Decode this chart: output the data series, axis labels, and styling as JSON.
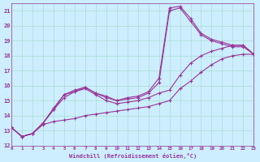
{
  "background_color": "#cceeff",
  "grid_color": "#aaddcc",
  "line_color": "#993399",
  "xlim": [
    0,
    23
  ],
  "ylim": [
    12,
    21.5
  ],
  "xlabel": "Windchill (Refroidissement éolien,°C)",
  "xlabel_color": "#993399",
  "tick_color": "#993399",
  "series": [
    {
      "x": [
        0,
        1,
        2,
        3,
        4,
        5,
        6,
        7,
        8,
        9,
        10,
        11,
        12,
        13,
        14,
        15,
        16,
        17,
        18,
        19,
        20,
        21,
        22,
        23
      ],
      "y": [
        13.2,
        12.6,
        12.8,
        13.4,
        13.6,
        13.7,
        13.8,
        14.0,
        14.1,
        14.2,
        14.3,
        14.4,
        14.5,
        14.6,
        14.8,
        15.0,
        15.8,
        16.3,
        16.9,
        17.4,
        17.8,
        18.0,
        18.1,
        18.1
      ]
    },
    {
      "x": [
        0,
        1,
        2,
        3,
        4,
        5,
        6,
        7,
        8,
        9,
        10,
        11,
        12,
        13,
        14,
        15,
        16,
        17,
        18,
        19,
        20,
        21,
        22,
        23
      ],
      "y": [
        13.2,
        12.6,
        12.8,
        13.5,
        14.4,
        15.4,
        15.6,
        15.8,
        15.4,
        15.0,
        14.8,
        14.9,
        15.0,
        15.2,
        15.5,
        15.7,
        16.7,
        17.5,
        18.0,
        18.3,
        18.5,
        18.7,
        18.7,
        18.1
      ]
    },
    {
      "x": [
        0,
        1,
        2,
        3,
        4,
        5,
        6,
        7,
        8,
        9,
        10,
        11,
        12,
        13,
        14,
        15,
        16,
        17,
        18,
        19,
        20,
        21,
        22,
        23
      ],
      "y": [
        13.2,
        12.6,
        12.8,
        13.5,
        14.5,
        15.4,
        15.7,
        15.9,
        15.5,
        15.3,
        15.0,
        15.2,
        15.3,
        15.6,
        16.5,
        21.2,
        21.3,
        20.5,
        19.5,
        19.1,
        18.9,
        18.7,
        18.7,
        18.1
      ]
    },
    {
      "x": [
        0,
        1,
        2,
        3,
        4,
        5,
        6,
        7,
        8,
        9,
        10,
        11,
        12,
        13,
        14,
        15,
        16,
        17,
        18,
        19,
        20,
        21,
        22,
        23
      ],
      "y": [
        13.2,
        12.6,
        12.8,
        13.5,
        14.4,
        15.2,
        15.6,
        15.9,
        15.5,
        15.2,
        15.0,
        15.1,
        15.2,
        15.5,
        16.2,
        21.0,
        21.2,
        20.3,
        19.4,
        19.0,
        18.8,
        18.6,
        18.6,
        18.1
      ]
    }
  ],
  "xtick_labels": [
    "0",
    "1",
    "2",
    "3",
    "4",
    "5",
    "6",
    "7",
    "8",
    "9",
    "10",
    "11",
    "12",
    "13",
    "14",
    "15",
    "16",
    "17",
    "18",
    "19",
    "20",
    "21",
    "22",
    "23"
  ],
  "ytick_labels": [
    "12",
    "13",
    "14",
    "15",
    "16",
    "17",
    "18",
    "19",
    "20",
    "21"
  ]
}
